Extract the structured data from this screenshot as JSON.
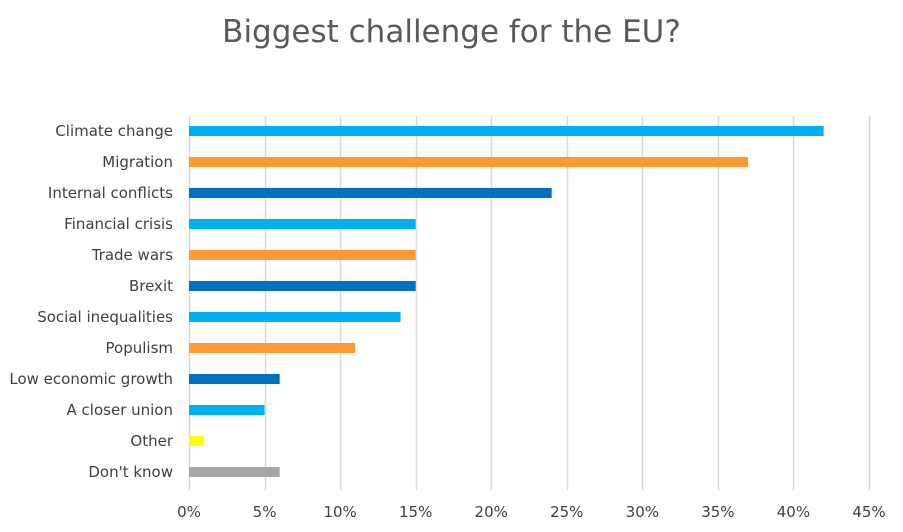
{
  "chart_data": {
    "type": "bar",
    "orientation": "horizontal",
    "title": "Biggest challenge for the EU?",
    "xlabel": "",
    "ylabel": "",
    "xlim": [
      0,
      45
    ],
    "grid": true,
    "x_ticks": [
      "0%",
      "5%",
      "10%",
      "15%",
      "20%",
      "25%",
      "30%",
      "35%",
      "40%",
      "45%"
    ],
    "categories": [
      "Climate change",
      "Migration",
      "Internal conflicts",
      "Financial crisis",
      "Trade wars",
      "Brexit",
      "Social inequalities",
      "Populism",
      "Low economic growth",
      "A closer union",
      "Other",
      "Don't know"
    ],
    "values": [
      42,
      37,
      24,
      15,
      15,
      15,
      14,
      11,
      6,
      5,
      1,
      6
    ],
    "colors": [
      "#00B0F0",
      "#FF9933",
      "#0070C0",
      "#00B0F0",
      "#FF9933",
      "#0070C0",
      "#00B0F0",
      "#FF9933",
      "#0070C0",
      "#00B0F0",
      "#FFFF00",
      "#A6A6A6"
    ],
    "gridline_color": "#D9D9D9"
  }
}
